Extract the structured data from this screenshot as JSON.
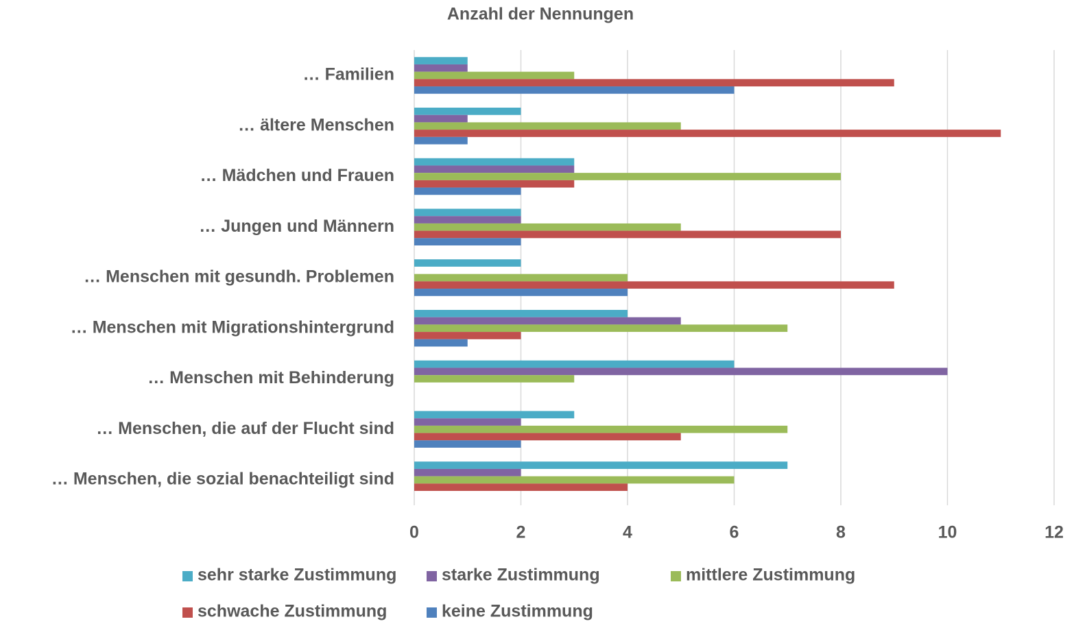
{
  "chart_data": {
    "type": "hbar",
    "title": "Anzahl der Nennungen",
    "categories": [
      "… Familien",
      "… ältere Menschen",
      "… Mädchen und Frauen",
      "… Jungen und Männern",
      "… Menschen mit gesundh. Problemen",
      "… Menschen mit Migrationshintergrund",
      "… Menschen mit Behinderung",
      "… Menschen, die auf der Flucht sind",
      "… Menschen, die sozial benachteiligt sind"
    ],
    "series": [
      {
        "name": "sehr starke Zustimmung",
        "color": "#4bacc6",
        "values": [
          1,
          2,
          3,
          2,
          2,
          4,
          6,
          3,
          7
        ]
      },
      {
        "name": "starke Zustimmung",
        "color": "#8064a2",
        "values": [
          1,
          1,
          3,
          2,
          0,
          5,
          10,
          2,
          2
        ]
      },
      {
        "name": "mittlere Zustimmung",
        "color": "#9bbb59",
        "values": [
          3,
          5,
          8,
          5,
          4,
          7,
          3,
          7,
          6
        ]
      },
      {
        "name": "schwache Zustimmung",
        "color": "#c0504d",
        "values": [
          9,
          11,
          3,
          8,
          9,
          2,
          0,
          5,
          4
        ]
      },
      {
        "name": "keine Zustimmung",
        "color": "#4f81bd",
        "values": [
          6,
          1,
          2,
          2,
          4,
          1,
          0,
          2,
          0
        ]
      }
    ],
    "xlim": [
      0,
      12
    ],
    "xticks": [
      0,
      2,
      4,
      6,
      8,
      10,
      12
    ],
    "grid": true,
    "legend": "bottom"
  }
}
